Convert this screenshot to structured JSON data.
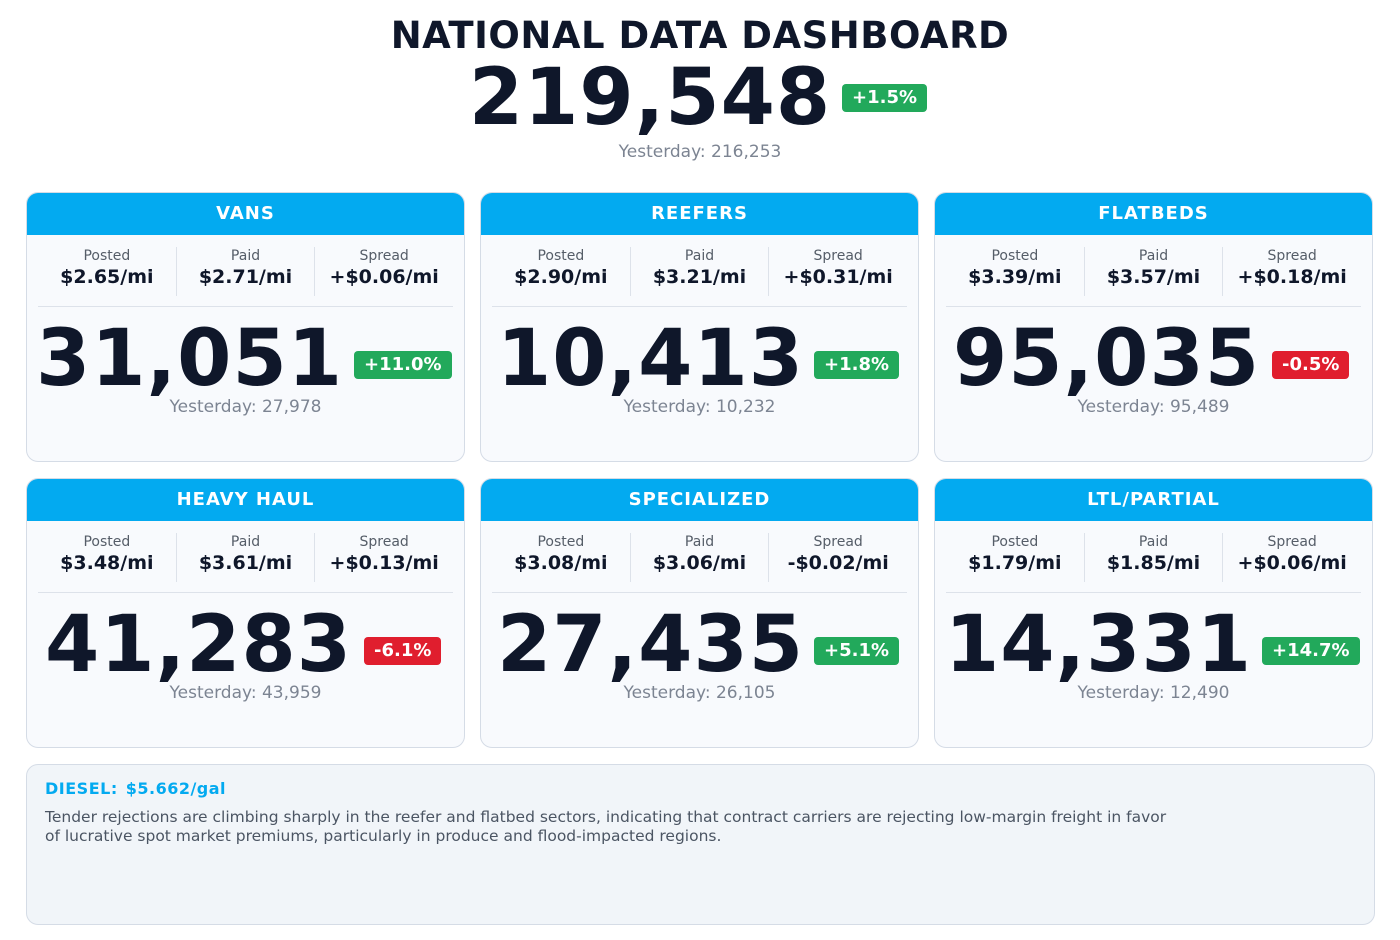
{
  "title": "NATIONAL DATA DASHBOARD",
  "total": {
    "value": "219,548",
    "change": "+1.5%",
    "direction": "up",
    "yesterday": "Yesterday: 216,253"
  },
  "colors": {
    "header": "#03aaf0",
    "up": "#22a95b",
    "down": "#e01e2e",
    "text": "#0f172a"
  },
  "cards": [
    {
      "name": "VANS",
      "posted_label": "Posted",
      "posted": "$2.65/mi",
      "paid_label": "Paid",
      "paid": "$2.71/mi",
      "spread_label": "Spread",
      "spread": "+$0.06/mi",
      "value": "31,051",
      "change": "+11.0%",
      "direction": "up",
      "yesterday": "Yesterday: 27,978"
    },
    {
      "name": "REEFERS",
      "posted_label": "Posted",
      "posted": "$2.90/mi",
      "paid_label": "Paid",
      "paid": "$3.21/mi",
      "spread_label": "Spread",
      "spread": "+$0.31/mi",
      "value": "10,413",
      "change": "+1.8%",
      "direction": "up",
      "yesterday": "Yesterday: 10,232"
    },
    {
      "name": "FLATBEDS",
      "posted_label": "Posted",
      "posted": "$3.39/mi",
      "paid_label": "Paid",
      "paid": "$3.57/mi",
      "spread_label": "Spread",
      "spread": "+$0.18/mi",
      "value": "95,035",
      "change": "-0.5%",
      "direction": "down",
      "yesterday": "Yesterday: 95,489"
    },
    {
      "name": "HEAVY HAUL",
      "posted_label": "Posted",
      "posted": "$3.48/mi",
      "paid_label": "Paid",
      "paid": "$3.61/mi",
      "spread_label": "Spread",
      "spread": "+$0.13/mi",
      "value": "41,283",
      "change": "-6.1%",
      "direction": "down",
      "yesterday": "Yesterday: 43,959"
    },
    {
      "name": "SPECIALIZED",
      "posted_label": "Posted",
      "posted": "$3.08/mi",
      "paid_label": "Paid",
      "paid": "$3.06/mi",
      "spread_label": "Spread",
      "spread": "-$0.02/mi",
      "value": "27,435",
      "change": "+5.1%",
      "direction": "up",
      "yesterday": "Yesterday: 26,105"
    },
    {
      "name": "LTL/PARTIAL",
      "posted_label": "Posted",
      "posted": "$1.79/mi",
      "paid_label": "Paid",
      "paid": "$1.85/mi",
      "spread_label": "Spread",
      "spread": "+$0.06/mi",
      "value": "14,331",
      "change": "+14.7%",
      "direction": "up",
      "yesterday": "Yesterday: 12,490"
    }
  ],
  "note": {
    "diesel_label": "DIESEL:",
    "diesel_value": "$5.662/gal",
    "text": "Tender rejections are climbing sharply in the reefer and flatbed sectors, indicating that contract carriers are rejecting low-margin freight in favor of lucrative spot market premiums, particularly in produce and flood-impacted regions."
  }
}
